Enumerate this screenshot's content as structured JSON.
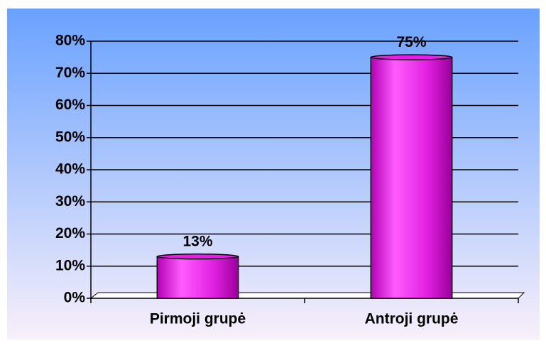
{
  "chart_data": {
    "type": "bar",
    "categories": [
      "Pirmoji grupė",
      "Antroji grupė"
    ],
    "values": [
      13,
      75
    ],
    "value_labels": [
      "13%",
      "75%"
    ],
    "color": "#e61ee6",
    "ylim": [
      0,
      80
    ],
    "yticks": [
      {
        "value": 0,
        "label": "0%"
      },
      {
        "value": 10,
        "label": "10%"
      },
      {
        "value": 20,
        "label": "20%"
      },
      {
        "value": 30,
        "label": "30%"
      },
      {
        "value": 40,
        "label": "40%"
      },
      {
        "value": 50,
        "label": "50%"
      },
      {
        "value": 60,
        "label": "60%"
      },
      {
        "value": 70,
        "label": "70%"
      },
      {
        "value": 80,
        "label": "80%"
      }
    ],
    "grid": true
  }
}
